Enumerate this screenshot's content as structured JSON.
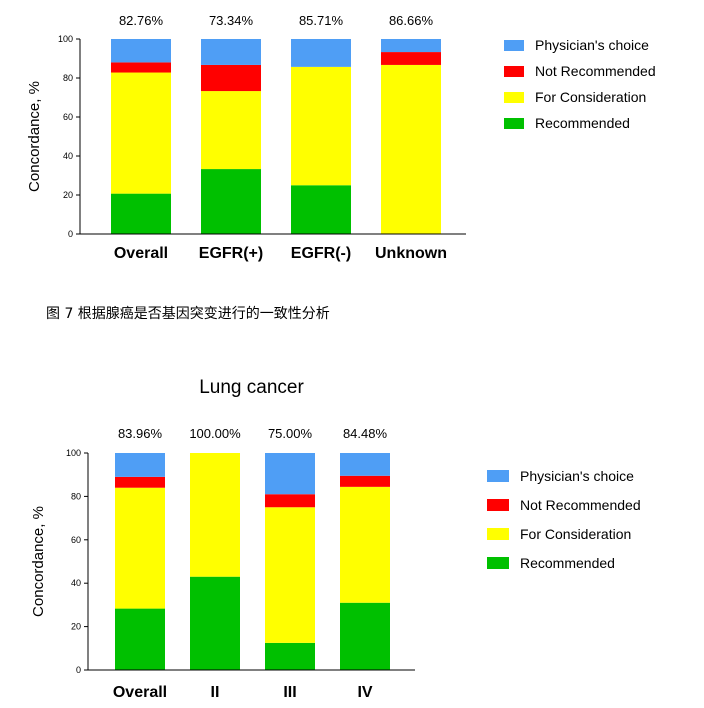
{
  "caption": "图 7  根据腺癌是否基因突变进行的一致性分析",
  "colors": {
    "Recommended": "#00c000",
    "For Consideration": "#ffff00",
    "Not Recommended": "#ff0000",
    "Physician's choice": "#4f9ef5"
  },
  "chart_data": [
    {
      "type": "bar",
      "stacked": true,
      "title": "",
      "ylabel": "Concordance, %",
      "ylim": [
        0,
        100
      ],
      "yticks": [
        "0",
        "20",
        "40",
        "60",
        "80",
        "100"
      ],
      "categories": [
        "Overall",
        "EGFR(+)",
        "EGFR(-)",
        "Unknown"
      ],
      "concordance_labels": [
        "82.76%",
        "73.34%",
        "85.71%",
        "86.66%"
      ],
      "legend": [
        "Physician's choice",
        "Not Recommended",
        "For Consideration",
        "Recommended"
      ],
      "legend_placement": "right",
      "series": [
        {
          "name": "Recommended",
          "values": [
            20.7,
            33.3,
            25.0,
            0
          ]
        },
        {
          "name": "For Consideration",
          "values": [
            62.1,
            40.0,
            60.7,
            86.7
          ]
        },
        {
          "name": "Not Recommended",
          "values": [
            5.2,
            13.4,
            0,
            6.6
          ]
        },
        {
          "name": "Physician's choice",
          "values": [
            12.0,
            13.3,
            14.3,
            6.7
          ]
        }
      ]
    },
    {
      "type": "bar",
      "stacked": true,
      "title": "Lung cancer",
      "ylabel": "Concordance, %",
      "ylim": [
        0,
        100
      ],
      "yticks": [
        "0",
        "20",
        "40",
        "60",
        "80",
        "100"
      ],
      "categories": [
        "Overall",
        "II",
        "III",
        "IV"
      ],
      "concordance_labels": [
        "83.96%",
        "100.00%",
        "75.00%",
        "84.48%"
      ],
      "legend": [
        "Physician's choice",
        "Not Recommended",
        "For Consideration",
        "Recommended"
      ],
      "legend_placement": "right",
      "series": [
        {
          "name": "Recommended",
          "values": [
            28.3,
            43.0,
            12.5,
            31.0
          ]
        },
        {
          "name": "For Consideration",
          "values": [
            55.7,
            57.0,
            62.5,
            53.4
          ]
        },
        {
          "name": "Not Recommended",
          "values": [
            5.0,
            0,
            6.0,
            5.1
          ]
        },
        {
          "name": "Physician's choice",
          "values": [
            11.0,
            0,
            19.0,
            10.5
          ]
        }
      ]
    }
  ]
}
